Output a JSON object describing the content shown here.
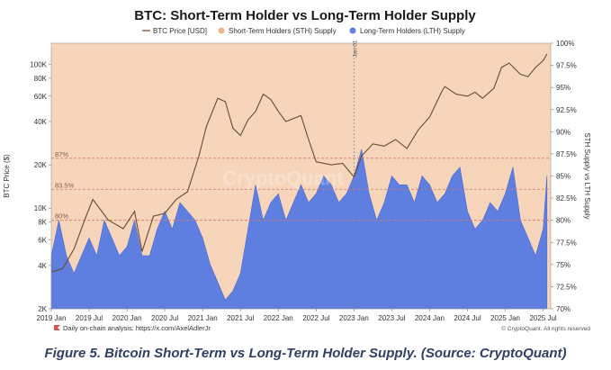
{
  "chart_data": {
    "type": "area",
    "title": "BTC: Short-Term Holder vs Long-Term Holder Supply",
    "legend": [
      "BTC Price [USD]",
      "Short-Term Holders (STH) Supply",
      "Long-Term Holders (LTH) Supply"
    ],
    "legend_position": "top-center",
    "ylabel_left": "BTC Price ($)",
    "ylabel_right": "STH Supply vs LTH Supply",
    "x_ticks": [
      "2019 Jan",
      "2019 Jul",
      "2020 Jan",
      "2020 Jul",
      "2021 Jan",
      "2021 Jul",
      "2022 Jan",
      "2022 Jul",
      "2023 Jan",
      "2023 Jul",
      "2024 Jan",
      "2024 Jul",
      "2025 Jan",
      "2025 Jul"
    ],
    "xlim": [
      2019.0,
      2025.6
    ],
    "y_left_ticks": [
      "2K",
      "4K",
      "6K",
      "8K",
      "10K",
      "20K",
      "40K",
      "60K",
      "80K",
      "100K"
    ],
    "y_left_values": [
      2000,
      4000,
      6000,
      8000,
      10000,
      20000,
      40000,
      60000,
      80000,
      100000
    ],
    "y_left_scale": "log",
    "y_left_lim": [
      2000,
      140000
    ],
    "y_right_ticks": [
      "70%",
      "72.5%",
      "75%",
      "77.5%",
      "80%",
      "82.5%",
      "85%",
      "87.5%",
      "90%",
      "92.5%",
      "95%",
      "97.5%",
      "100%"
    ],
    "y_right_lim": [
      70,
      100
    ],
    "reference_lines": [
      {
        "label": "87%",
        "value": 87
      },
      {
        "label": "83.5%",
        "value": 83.5
      },
      {
        "label": "80%",
        "value": 80
      }
    ],
    "vertical_marker": {
      "label": "Jan 01",
      "x": 2023.0
    },
    "series": [
      {
        "name": "Long-Term Holders (LTH) Supply",
        "color": "#5f7fe0",
        "x": [
          2019.0,
          2019.1,
          2019.2,
          2019.3,
          2019.4,
          2019.5,
          2019.6,
          2019.7,
          2019.8,
          2019.9,
          2020.0,
          2020.1,
          2020.2,
          2020.3,
          2020.4,
          2020.5,
          2020.6,
          2020.7,
          2020.8,
          2020.9,
          2021.0,
          2021.1,
          2021.2,
          2021.3,
          2021.4,
          2021.5,
          2021.6,
          2021.7,
          2021.8,
          2021.9,
          2022.0,
          2022.1,
          2022.2,
          2022.3,
          2022.4,
          2022.5,
          2022.6,
          2022.7,
          2022.8,
          2022.9,
          2023.0,
          2023.1,
          2023.2,
          2023.3,
          2023.4,
          2023.5,
          2023.6,
          2023.7,
          2023.8,
          2023.9,
          2024.0,
          2024.1,
          2024.2,
          2024.3,
          2024.4,
          2024.5,
          2024.6,
          2024.7,
          2024.8,
          2024.9,
          2025.0,
          2025.1,
          2025.2,
          2025.3,
          2025.4,
          2025.5,
          2025.55
        ],
        "values": [
          76,
          80,
          76,
          74,
          76,
          78,
          76,
          80,
          78,
          76,
          77,
          80,
          76,
          76,
          79,
          81,
          79,
          82,
          81,
          80,
          78,
          75,
          73,
          71,
          72,
          74,
          79,
          84,
          80,
          82,
          83,
          80,
          82,
          84,
          82,
          83,
          85,
          84,
          82,
          83,
          85,
          88,
          83,
          80,
          82,
          85,
          84,
          84,
          82,
          85,
          84,
          82,
          83,
          85,
          86,
          81,
          79,
          80,
          82,
          81,
          83,
          86,
          80,
          78,
          76,
          79,
          85
        ]
      },
      {
        "name": "Short-Term Holders (STH) Supply",
        "color": "#f6d5bb",
        "note_range": [
          70,
          100
        ]
      },
      {
        "name": "BTC Price [USD]",
        "color": "#6b4a32",
        "x": [
          2019.0,
          2019.15,
          2019.3,
          2019.45,
          2019.55,
          2019.75,
          2019.95,
          2020.1,
          2020.2,
          2020.35,
          2020.5,
          2020.65,
          2020.8,
          2020.95,
          2021.05,
          2021.2,
          2021.3,
          2021.4,
          2021.5,
          2021.6,
          2021.7,
          2021.8,
          2021.9,
          2022.0,
          2022.1,
          2022.3,
          2022.4,
          2022.5,
          2022.7,
          2022.85,
          2023.0,
          2023.1,
          2023.25,
          2023.4,
          2023.55,
          2023.7,
          2023.85,
          2024.0,
          2024.15,
          2024.2,
          2024.35,
          2024.5,
          2024.6,
          2024.7,
          2024.85,
          2024.95,
          2025.05,
          2025.2,
          2025.3,
          2025.4,
          2025.5,
          2025.55
        ],
        "values": [
          3600,
          3800,
          5200,
          8500,
          11500,
          8300,
          7200,
          9500,
          5000,
          8800,
          9200,
          11500,
          13000,
          23000,
          37000,
          58000,
          55000,
          36000,
          32000,
          41000,
          47000,
          62000,
          57000,
          47000,
          40000,
          44000,
          30000,
          21000,
          20000,
          20500,
          16500,
          23000,
          28000,
          27000,
          30000,
          26000,
          35000,
          43000,
          63000,
          70000,
          62000,
          60000,
          64000,
          58000,
          68000,
          95000,
          102000,
          85000,
          82000,
          95000,
          106000,
          118000
        ]
      }
    ],
    "watermark": "CryptoQuant",
    "footer_left": "Daily on-chain analysis: https://x.com/AxelAdlerJr",
    "footer_right": "© CryptoQuant. All rights reserved",
    "colors": {
      "lth": "#5f7fe0",
      "sth": "#f6d5bb",
      "price": "#6b4a32",
      "ref_line": "#cf7a72",
      "title": "#1a1a1a"
    }
  },
  "caption": "Figure 5.  Bitcoin Short-Term vs Long-Term Holder Supply. (Source: CryptoQuant)"
}
